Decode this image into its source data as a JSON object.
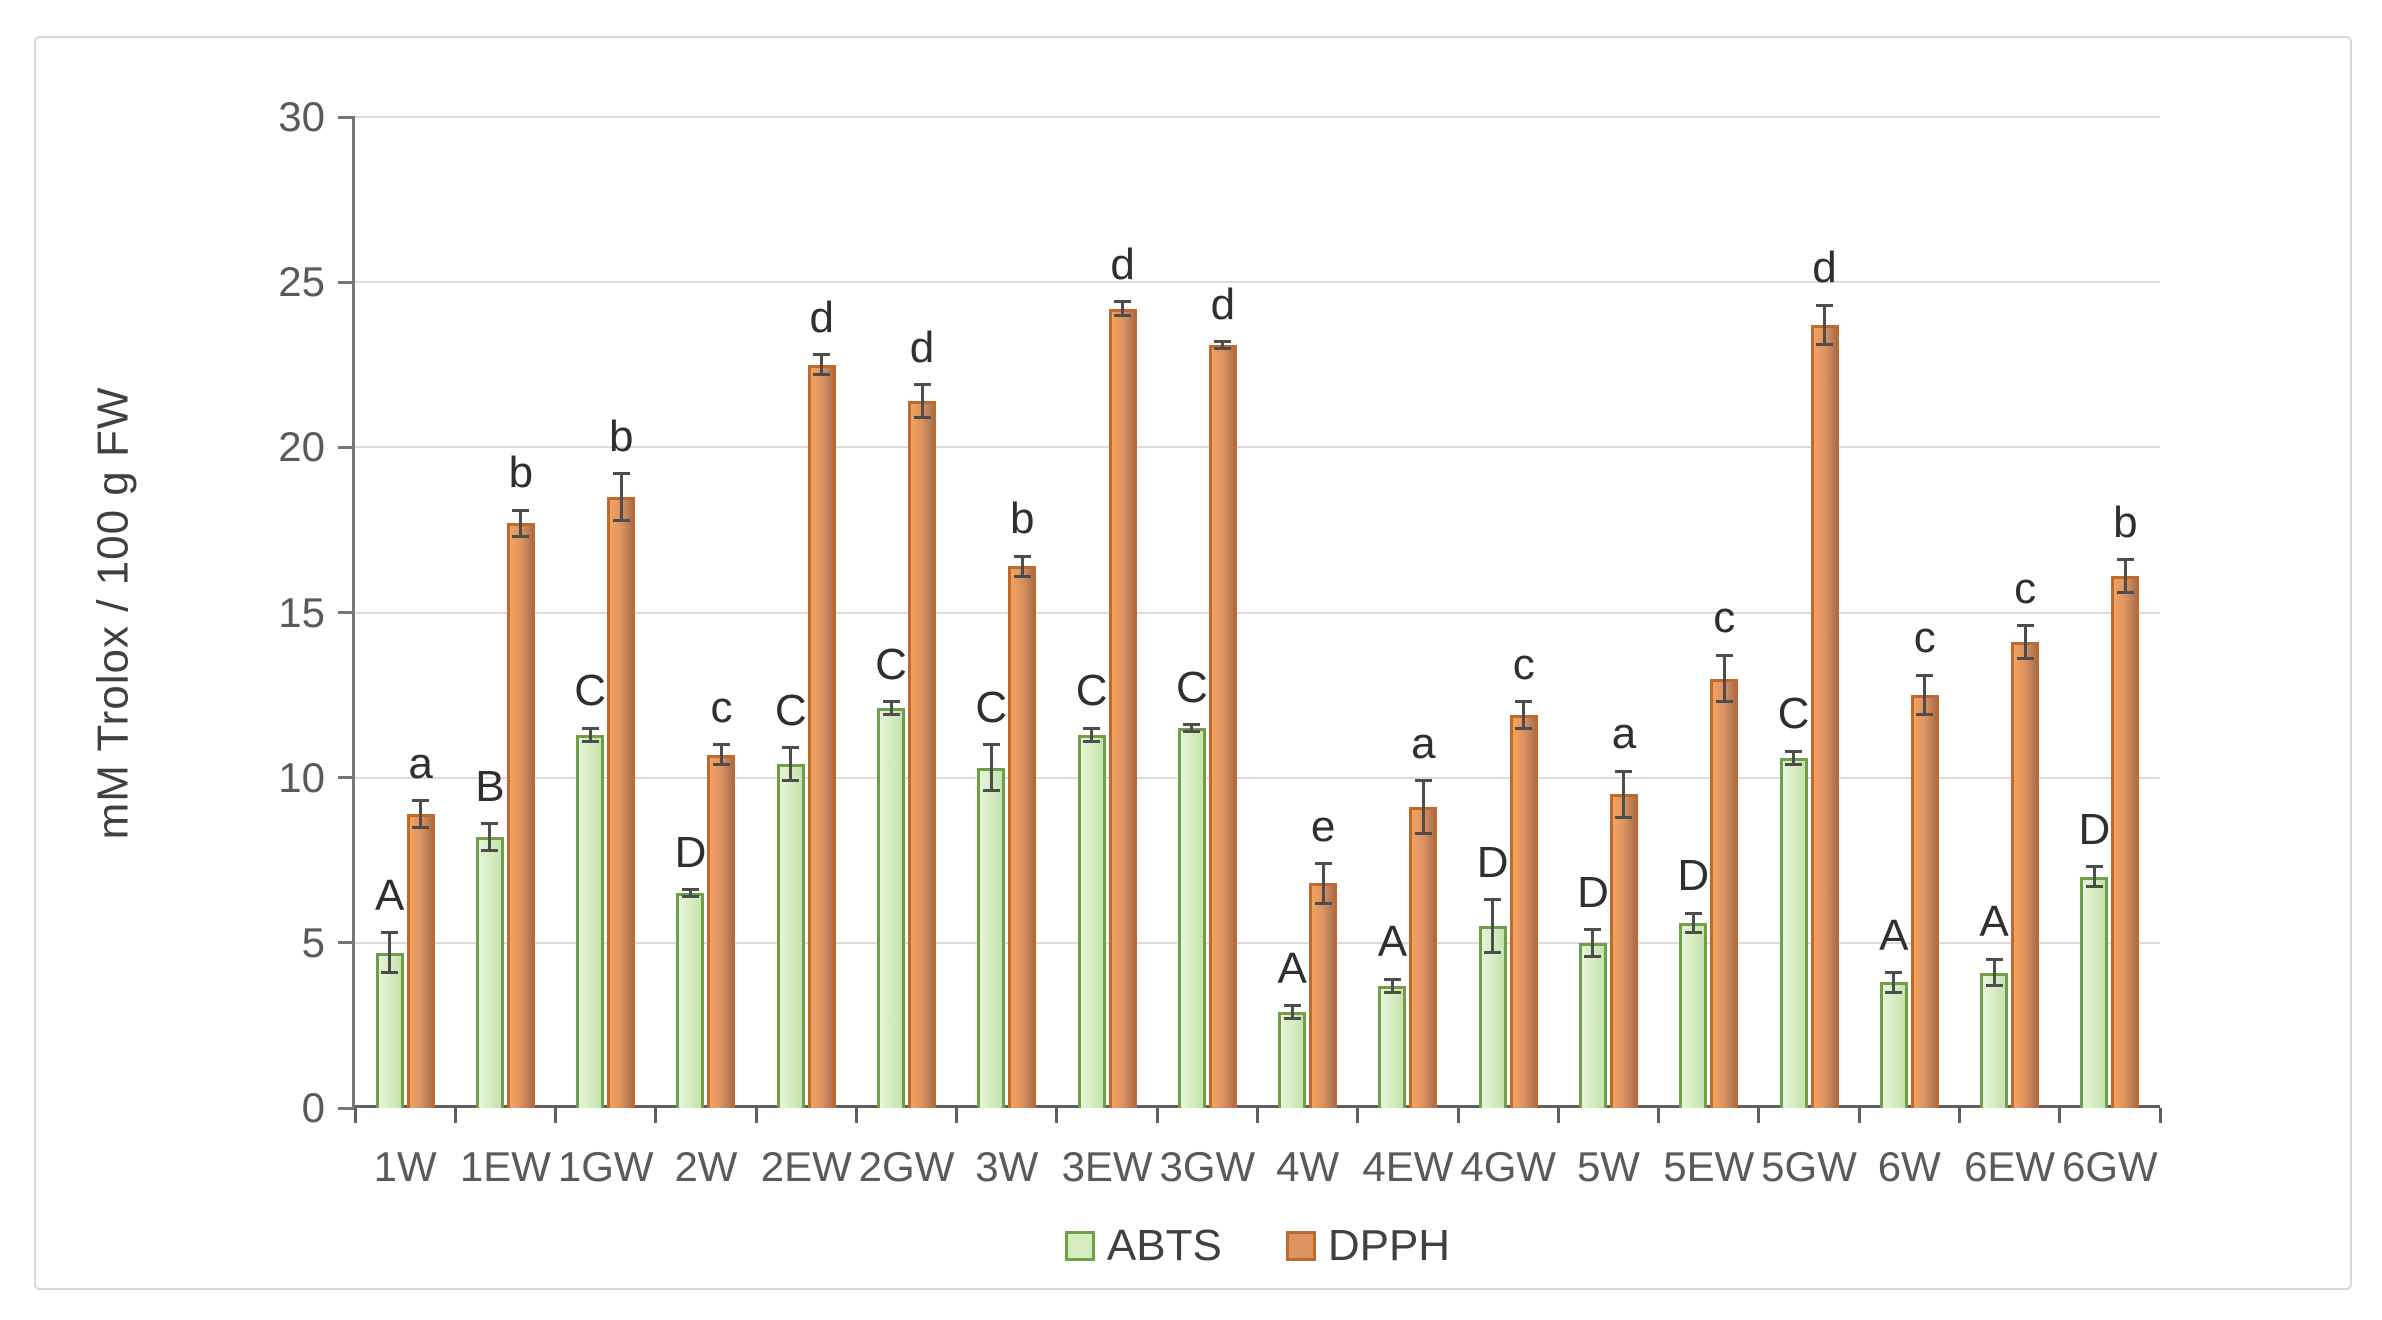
{
  "chart_data": {
    "type": "bar",
    "title": "",
    "xlabel": "",
    "ylabel": "mM Trolox / 100 g FW",
    "ylim": [
      0,
      30
    ],
    "y_ticks": [
      0,
      5,
      10,
      15,
      20,
      25,
      30
    ],
    "grid": true,
    "legend_position": "bottom",
    "categories": [
      "1W",
      "1EW",
      "1GW",
      "2W",
      "2EW",
      "2GW",
      "3W",
      "3EW",
      "3GW",
      "4W",
      "4EW",
      "4GW",
      "5W",
      "5EW",
      "5GW",
      "6W",
      "6EW",
      "6GW"
    ],
    "series": [
      {
        "name": "ABTS",
        "values": [
          4.7,
          8.2,
          11.3,
          6.5,
          10.4,
          12.1,
          10.3,
          11.3,
          11.5,
          2.9,
          3.7,
          5.5,
          5.0,
          5.6,
          10.6,
          3.8,
          4.1,
          7.0
        ],
        "errors": [
          0.6,
          0.4,
          0.2,
          0.1,
          0.5,
          0.2,
          0.7,
          0.2,
          0.1,
          0.2,
          0.2,
          0.8,
          0.4,
          0.3,
          0.2,
          0.3,
          0.4,
          0.3
        ],
        "letters": [
          "A",
          "B",
          "C",
          "D",
          "C",
          "C",
          "C",
          "C",
          "C",
          "A",
          "A",
          "D",
          "D",
          "D",
          "C",
          "A",
          "A",
          "D"
        ],
        "fill_light": "#e7f4da",
        "fill": "#d5edc1",
        "fill_dark": "#c6e3af",
        "border": "#6f9f47"
      },
      {
        "name": "DPPH",
        "values": [
          8.9,
          17.7,
          18.5,
          10.7,
          22.5,
          21.4,
          16.4,
          24.2,
          23.1,
          6.8,
          9.1,
          11.9,
          9.5,
          13.0,
          23.7,
          12.5,
          14.1,
          16.1
        ],
        "errors": [
          0.4,
          0.4,
          0.7,
          0.3,
          0.3,
          0.5,
          0.3,
          0.2,
          0.1,
          0.6,
          0.8,
          0.4,
          0.7,
          0.7,
          0.6,
          0.6,
          0.5,
          0.5
        ],
        "letters": [
          "a",
          "b",
          "b",
          "c",
          "d",
          "d",
          "b",
          "d",
          "d",
          "e",
          "a",
          "c",
          "a",
          "c",
          "d",
          "c",
          "c",
          "b"
        ],
        "fill_light": "#f2a35e",
        "fill": "#dd9261",
        "fill_dark": "#aa734f",
        "border": "#c0692f"
      }
    ],
    "error_bar_color": "#4d4d4d",
    "gridline_color": "#dcdcdc",
    "axis_color": "#767676",
    "tick_label_color": "#5a5a5a",
    "letter_color": "#2f2f2f"
  }
}
